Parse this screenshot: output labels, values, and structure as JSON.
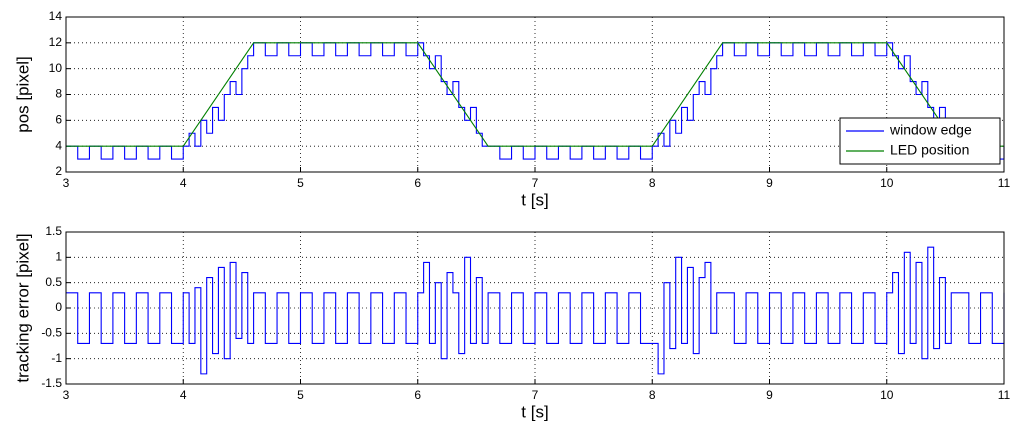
{
  "chart_data": [
    {
      "type": "line",
      "step": "post",
      "ylabel": "pos [pixel]",
      "xlabel": "t [s]",
      "grid": true,
      "legend": "lower right",
      "xlim": [
        3,
        11
      ],
      "xticks": [
        3,
        4,
        5,
        6,
        7,
        8,
        9,
        10,
        11
      ],
      "ylim": [
        2,
        14
      ],
      "yticks": [
        2,
        4,
        6,
        8,
        10,
        12,
        14
      ],
      "series": [
        {
          "name": "window edge",
          "color": "#0000ff",
          "step": true,
          "x": [
            3,
            3.1,
            3.2,
            3.3,
            3.4,
            3.5,
            3.6,
            3.7,
            3.8,
            3.9,
            4,
            4.05,
            4.1,
            4.15,
            4.2,
            4.25,
            4.3,
            4.35,
            4.4,
            4.45,
            4.5,
            4.55,
            4.6,
            4.7,
            4.8,
            4.9,
            5,
            5.1,
            5.2,
            5.3,
            5.4,
            5.5,
            5.6,
            5.7,
            5.8,
            5.9,
            6,
            6.05,
            6.1,
            6.15,
            6.2,
            6.25,
            6.3,
            6.35,
            6.4,
            6.45,
            6.5,
            6.55,
            6.6,
            6.7,
            6.8,
            6.9,
            7,
            7.1,
            7.2,
            7.3,
            7.4,
            7.5,
            7.6,
            7.7,
            7.8,
            7.9,
            8,
            8.05,
            8.1,
            8.15,
            8.2,
            8.25,
            8.3,
            8.35,
            8.4,
            8.45,
            8.5,
            8.55,
            8.6,
            8.7,
            8.8,
            8.9,
            9,
            9.1,
            9.2,
            9.3,
            9.4,
            9.5,
            9.6,
            9.7,
            9.8,
            9.9,
            10,
            10.05,
            10.1,
            10.15,
            10.2,
            10.25,
            10.3,
            10.35,
            10.4,
            10.45,
            10.5,
            10.55,
            10.6,
            10.7,
            10.8,
            10.9,
            11
          ],
          "values": [
            4,
            3,
            4,
            3,
            4,
            3,
            4,
            3,
            4,
            3,
            4,
            5,
            4,
            6,
            5,
            7,
            6,
            8,
            9,
            8,
            10,
            11,
            12,
            11,
            12,
            11,
            12,
            11,
            12,
            11,
            12,
            11,
            12,
            11,
            12,
            11,
            12,
            11,
            10,
            11,
            9,
            8,
            9,
            7,
            6,
            7,
            5,
            4,
            4,
            3,
            4,
            3,
            4,
            3,
            4,
            3,
            4,
            3,
            4,
            3,
            4,
            3,
            4,
            5,
            4,
            6,
            5,
            7,
            6,
            8,
            9,
            8,
            10,
            11,
            12,
            11,
            12,
            11,
            12,
            11,
            12,
            11,
            12,
            11,
            12,
            11,
            12,
            11,
            12,
            11,
            10,
            11,
            9,
            8,
            9,
            7,
            6,
            7,
            5,
            4,
            4,
            3,
            4,
            3,
            4
          ]
        },
        {
          "name": "LED position",
          "color": "#008000",
          "step": false,
          "x": [
            3,
            4,
            4.6,
            6,
            6.6,
            8,
            8.6,
            10,
            10.6,
            11
          ],
          "values": [
            4,
            4,
            12,
            12,
            4,
            4,
            12,
            12,
            4,
            4
          ]
        }
      ]
    },
    {
      "type": "line",
      "ylabel": "tracking error [pixel]",
      "xlabel": "t [s]",
      "grid": true,
      "xlim": [
        3,
        11
      ],
      "xticks": [
        3,
        4,
        5,
        6,
        7,
        8,
        9,
        10,
        11
      ],
      "ylim": [
        -1.5,
        1.5
      ],
      "yticks": [
        -1.5,
        -1,
        -0.5,
        0,
        0.5,
        1,
        1.5
      ],
      "series": [
        {
          "color": "#0000ff",
          "step": true,
          "x": [
            3,
            3.1,
            3.2,
            3.3,
            3.4,
            3.5,
            3.6,
            3.7,
            3.8,
            3.9,
            4,
            4.05,
            4.1,
            4.15,
            4.2,
            4.25,
            4.3,
            4.35,
            4.4,
            4.45,
            4.5,
            4.55,
            4.6,
            4.7,
            4.8,
            4.9,
            5,
            5.1,
            5.2,
            5.3,
            5.4,
            5.5,
            5.6,
            5.7,
            5.8,
            5.9,
            6,
            6.05,
            6.1,
            6.15,
            6.2,
            6.25,
            6.3,
            6.35,
            6.4,
            6.45,
            6.5,
            6.55,
            6.6,
            6.7,
            6.8,
            6.9,
            7,
            7.1,
            7.2,
            7.3,
            7.4,
            7.5,
            7.6,
            7.7,
            7.8,
            7.9,
            8,
            8.05,
            8.1,
            8.15,
            8.2,
            8.25,
            8.3,
            8.35,
            8.4,
            8.45,
            8.5,
            8.55,
            8.6,
            8.7,
            8.8,
            8.9,
            9,
            9.1,
            9.2,
            9.3,
            9.4,
            9.5,
            9.6,
            9.7,
            9.8,
            9.9,
            10,
            10.05,
            10.1,
            10.15,
            10.2,
            10.25,
            10.3,
            10.35,
            10.4,
            10.45,
            10.5,
            10.55,
            10.6,
            10.7,
            10.8,
            10.9,
            11
          ],
          "values": [
            0.3,
            -0.7,
            0.3,
            -0.7,
            0.3,
            -0.7,
            0.3,
            -0.7,
            0.3,
            -0.7,
            0.3,
            -0.7,
            0.4,
            -1.3,
            0.6,
            -0.9,
            0.8,
            -1,
            0.9,
            -0.6,
            0.7,
            -0.7,
            0.3,
            -0.7,
            0.3,
            -0.7,
            0.3,
            -0.7,
            0.3,
            -0.7,
            0.3,
            -0.7,
            0.3,
            -0.7,
            0.3,
            -0.7,
            0.3,
            0.9,
            -0.7,
            0.5,
            -1,
            0.7,
            0.3,
            -0.9,
            1,
            -0.7,
            0.6,
            -0.7,
            0.3,
            -0.7,
            0.3,
            -0.7,
            0.3,
            -0.7,
            0.3,
            -0.7,
            0.3,
            -0.7,
            0.3,
            -0.7,
            0.3,
            -0.7,
            -0.7,
            -1.3,
            0.5,
            -0.8,
            1,
            -0.7,
            0.8,
            -0.9,
            0.6,
            0.9,
            -0.5,
            0.3,
            0.3,
            -0.7,
            0.3,
            -0.7,
            0.3,
            -0.7,
            0.3,
            -0.7,
            0.3,
            -0.7,
            0.3,
            -0.7,
            0.3,
            -0.7,
            0.3,
            0.7,
            -0.9,
            1.1,
            -0.7,
            0.9,
            -1,
            1.2,
            -0.8,
            0.6,
            -0.7,
            0.3,
            0.3,
            -0.7,
            0.3,
            -0.7,
            0.3
          ]
        }
      ]
    }
  ]
}
